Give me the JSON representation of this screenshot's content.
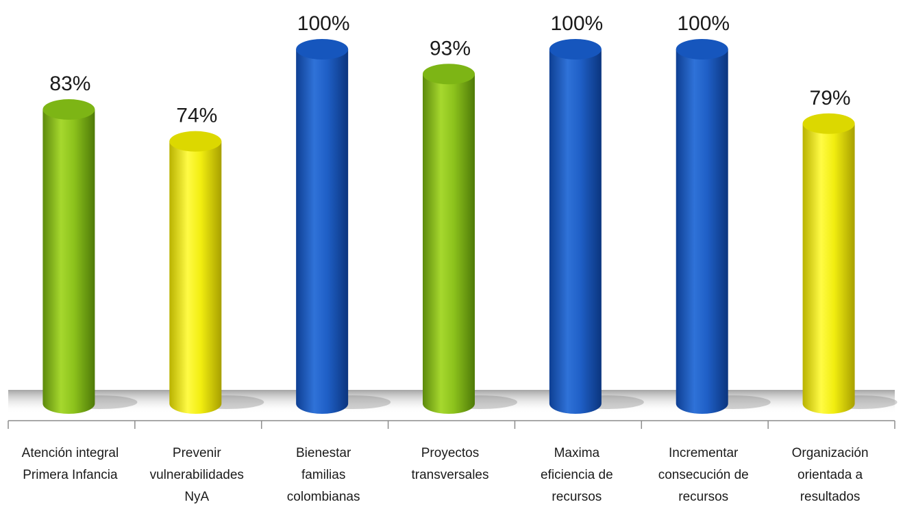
{
  "chart_data": {
    "type": "bar",
    "categories": [
      [
        "Atención integral",
        "Primera Infancia"
      ],
      [
        "Prevenir",
        "vulnerabilidades",
        "NyA"
      ],
      [
        "Bienestar",
        "familias",
        "colombianas"
      ],
      [
        "Proyectos",
        "transversales"
      ],
      [
        "Maxima",
        "eficiencia de",
        "recursos"
      ],
      [
        "Incrementar",
        "consecución de",
        "recursos"
      ],
      [
        "Organización",
        "orientada a",
        "resultados"
      ]
    ],
    "values": [
      83,
      74,
      100,
      93,
      100,
      100,
      79
    ],
    "value_labels": [
      "83%",
      "74%",
      "100%",
      "93%",
      "100%",
      "100%",
      "79%"
    ],
    "ylim": [
      0,
      100
    ],
    "grid": false,
    "colors": [
      "#8dc21f",
      "#f0ee12",
      "#1f5fc6",
      "#8dc21f",
      "#1f5fc6",
      "#1f5fc6",
      "#f0ee12"
    ]
  }
}
